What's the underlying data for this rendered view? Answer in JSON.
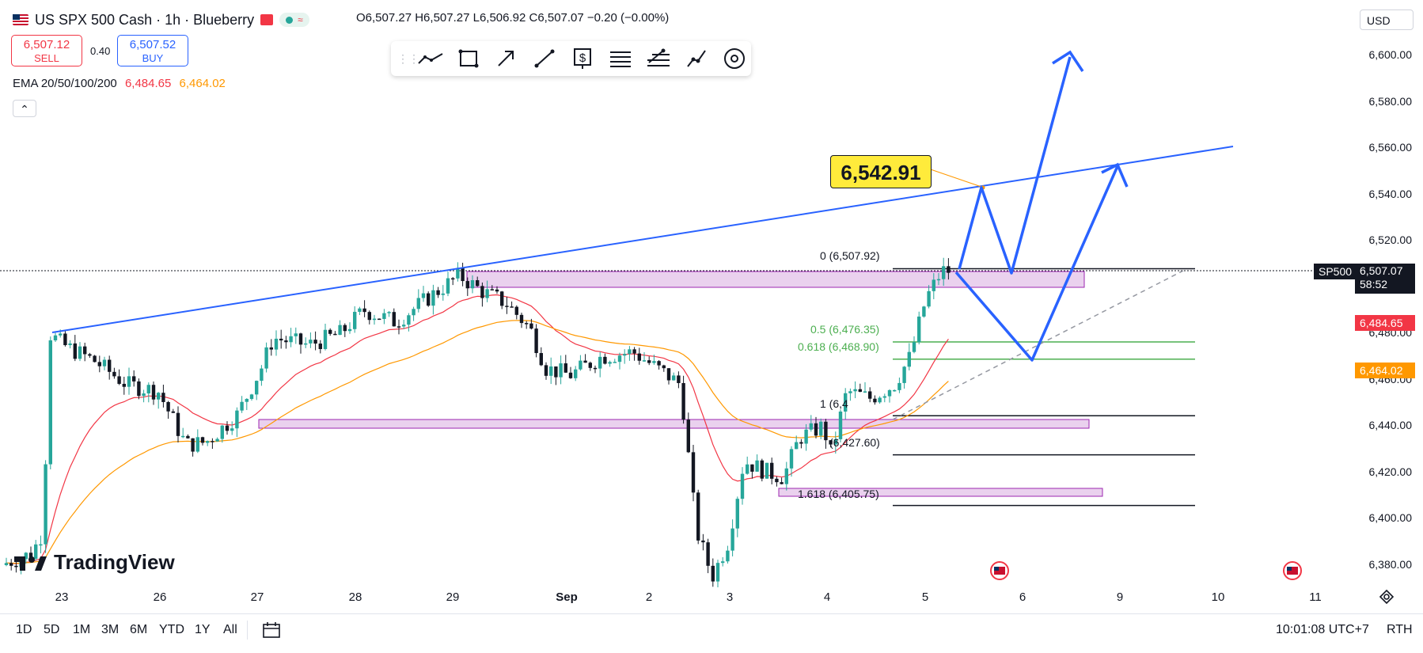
{
  "header": {
    "title": "US SPX 500 Cash · 1h · Blueberry",
    "ohlc": "O6,507.27 H6,507.27 L6,506.92 C6,507.07 −0.20 (−0.00%)",
    "status_icon_left": "green-dot-icon",
    "status_icon_right": "waves-icon"
  },
  "trade": {
    "sell_price": "6,507.12",
    "sell_label": "SELL",
    "spread": "0.40",
    "buy_price": "6,507.52",
    "buy_label": "BUY"
  },
  "indicator": {
    "label": "EMA 20/50/100/200",
    "value1": "6,484.65",
    "value2": "6,464.02",
    "color1": "#f23645",
    "color2": "#ff9800"
  },
  "toolbar_icons": [
    "trend-line-icon",
    "rectangle-icon",
    "arrow-icon",
    "ray-icon",
    "price-note-icon",
    "fib-retracement-icon",
    "pitchfork-icon",
    "path-icon",
    "more-icon"
  ],
  "currency": "USD",
  "y_axis": {
    "ticks": [
      "6,600.00",
      "6,580.00",
      "6,560.00",
      "6,540.00",
      "6,520.00",
      "6,500.00",
      "6,480.00",
      "6,460.00",
      "6,440.00",
      "6,420.00",
      "6,400.00",
      "6,380.00"
    ]
  },
  "x_axis": {
    "ticks": [
      "23",
      "26",
      "27",
      "28",
      "29",
      "Sep",
      "2",
      "3",
      "4",
      "5",
      "6",
      "9",
      "10",
      "11"
    ]
  },
  "price_tags": {
    "symbol": "SP500",
    "last": "6,507.07",
    "countdown": "58:52",
    "ema_red": "6,484.65",
    "ema_orange": "6,464.02"
  },
  "annotations": {
    "callout": "6,542.91",
    "fib_0": "0 (6,507.92)",
    "fib_05": "0.5 (6,476.35)",
    "fib_0618": "0.618 (6,468.90)",
    "fib_1": "1 (6,4",
    "fib_mid": "(6,427.60)",
    "fib_1618": "1.618 (6,405.75)"
  },
  "timeframes": [
    "1D",
    "5D",
    "1M",
    "3M",
    "6M",
    "YTD",
    "1Y",
    "All"
  ],
  "clock": "10:01:08 UTC+7",
  "session": "RTH",
  "logo": "TradingView",
  "colors": {
    "up": "#26a69a",
    "down": "#131722",
    "trend_blue": "#2962ff",
    "zone": "#e1bee7",
    "fib_green": "#4caf50"
  },
  "chart_data": {
    "type": "line",
    "title": "",
    "xlabel": "",
    "ylabel": "",
    "ylim": [
      6370,
      6610
    ],
    "x": [
      "23",
      "26",
      "27",
      "28",
      "29",
      "Sep",
      "2",
      "3",
      "4",
      "5"
    ],
    "series": [
      {
        "name": "",
        "values": [
          6478,
          6455,
          6470,
          6485,
          6500,
          6470,
          6462,
          6380,
          6440,
          6507
        ]
      }
    ]
  }
}
